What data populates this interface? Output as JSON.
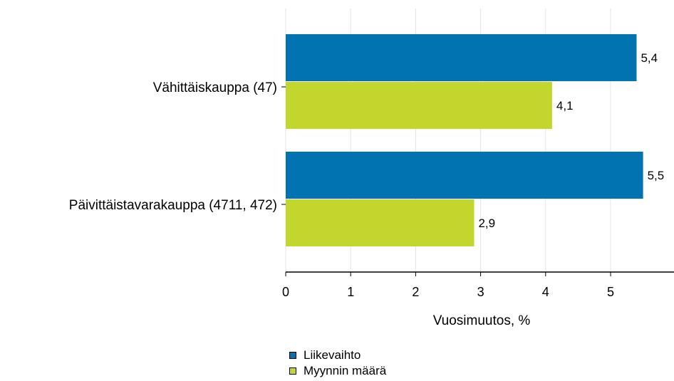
{
  "chart_data": {
    "type": "bar",
    "orientation": "horizontal",
    "categories": [
      "Vähittäiskauppa (47)",
      "Päivittäistavarakauppa (4711, 472)"
    ],
    "series": [
      {
        "name": "Liikevaihto",
        "color": "#0073b0",
        "values": [
          5.4,
          5.5
        ],
        "labels": [
          "5,4",
          "5,5"
        ]
      },
      {
        "name": "Myynnin määrä",
        "color": "#c3d62e",
        "values": [
          4.1,
          2.9
        ],
        "labels": [
          "4,1",
          "2,9"
        ]
      }
    ],
    "xticks": [
      "0",
      "1",
      "2",
      "3",
      "4",
      "5"
    ],
    "xlabel": "Vuosimuutos, %",
    "xlim": [
      0,
      6
    ],
    "grid": true,
    "legend_position": "bottom"
  }
}
